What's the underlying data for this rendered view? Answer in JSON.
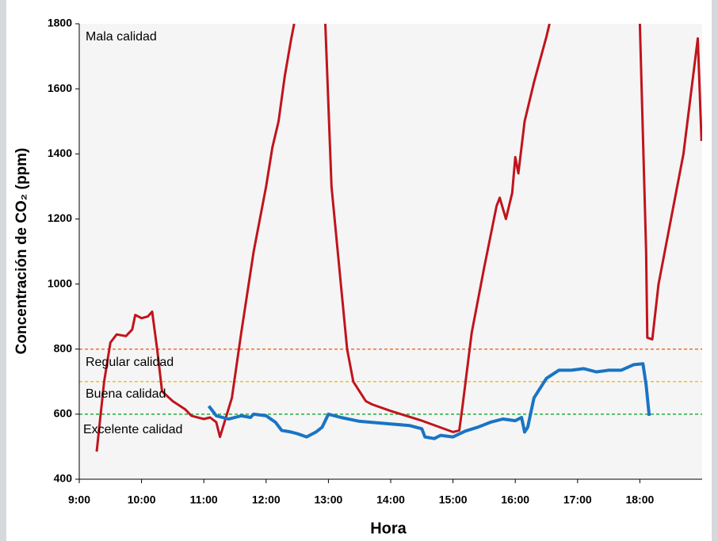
{
  "chart_data": {
    "type": "line",
    "xlabel": "Hora",
    "ylabel": "Concentración de CO₂ (ppm)",
    "xlim": [
      9,
      19
    ],
    "xticks": [
      {
        "value": 9,
        "label": "9:00"
      },
      {
        "value": 10,
        "label": "10:00"
      },
      {
        "value": 11,
        "label": "11:00"
      },
      {
        "value": 12,
        "label": "12:00"
      },
      {
        "value": 13,
        "label": "13:00"
      },
      {
        "value": 14,
        "label": "14:00"
      },
      {
        "value": 15,
        "label": "15:00"
      },
      {
        "value": 16,
        "label": "16:00"
      },
      {
        "value": 17,
        "label": "17:00"
      },
      {
        "value": 18,
        "label": "18:00"
      }
    ],
    "ylim": [
      400,
      1800
    ],
    "yticks": [
      400,
      600,
      800,
      1000,
      1200,
      1400,
      1600,
      1800
    ],
    "reference_lines": [
      {
        "value": 800,
        "color": "#f07030"
      },
      {
        "value": 700,
        "color": "#f0c020"
      },
      {
        "value": 600,
        "color": "#20b040"
      }
    ],
    "annotations": [
      "Mala calidad",
      "Regular calidad",
      "Buena calidad",
      "Excelente calidad"
    ],
    "series": [
      {
        "color": "#c0141c",
        "x": [
          9.28,
          9.4,
          9.5,
          9.6,
          9.75,
          9.85,
          9.9,
          10.0,
          10.1,
          10.17,
          10.25,
          10.33,
          10.5,
          10.7,
          10.8,
          11.0,
          11.1,
          11.2,
          11.26,
          11.45,
          11.6,
          11.8,
          12.0,
          12.1,
          12.2,
          12.3,
          12.4,
          12.45,
          12.7,
          12.95,
          13.05,
          13.2,
          13.3,
          13.4,
          13.6,
          13.7,
          14.0,
          14.5,
          15.0,
          15.1,
          15.15,
          15.3,
          15.5,
          15.7,
          15.75,
          15.85,
          15.95,
          16.0,
          16.05,
          16.15,
          16.3,
          16.5,
          16.55,
          17.3,
          18.0,
          18.1,
          18.12,
          18.2,
          18.3,
          18.5,
          18.7,
          18.93,
          18.99
        ],
        "values": [
          485,
          700,
          820,
          845,
          840,
          860,
          905,
          895,
          900,
          915,
          800,
          670,
          640,
          615,
          595,
          585,
          590,
          575,
          530,
          650,
          850,
          1100,
          1300,
          1420,
          1500,
          1640,
          1750,
          1800,
          null,
          1800,
          1300,
          1000,
          800,
          700,
          640,
          630,
          610,
          580,
          545,
          550,
          620,
          850,
          1050,
          1240,
          1265,
          1200,
          1280,
          1390,
          1340,
          1500,
          1620,
          1760,
          1800,
          null,
          1800,
          1100,
          835,
          830,
          1000,
          1200,
          1400,
          1755,
          1440
        ]
      },
      {
        "color": "#1a74c4",
        "x": [
          11.08,
          11.2,
          11.4,
          11.6,
          11.75,
          11.8,
          12.0,
          12.15,
          12.25,
          12.4,
          12.5,
          12.65,
          12.8,
          12.9,
          13.0,
          13.2,
          13.5,
          14.0,
          14.3,
          14.5,
          14.55,
          14.7,
          14.8,
          15.0,
          15.2,
          15.4,
          15.6,
          15.8,
          16.0,
          16.1,
          16.15,
          16.2,
          16.3,
          16.5,
          16.7,
          16.9,
          17.1,
          17.3,
          17.5,
          17.7,
          17.9,
          18.05,
          18.1,
          18.15
        ],
        "values": [
          625,
          595,
          585,
          595,
          590,
          600,
          595,
          575,
          550,
          545,
          540,
          530,
          545,
          560,
          600,
          590,
          578,
          570,
          565,
          555,
          530,
          525,
          535,
          530,
          548,
          560,
          575,
          585,
          580,
          590,
          545,
          560,
          650,
          710,
          735,
          735,
          740,
          730,
          735,
          735,
          752,
          755,
          690,
          595
        ]
      }
    ]
  }
}
